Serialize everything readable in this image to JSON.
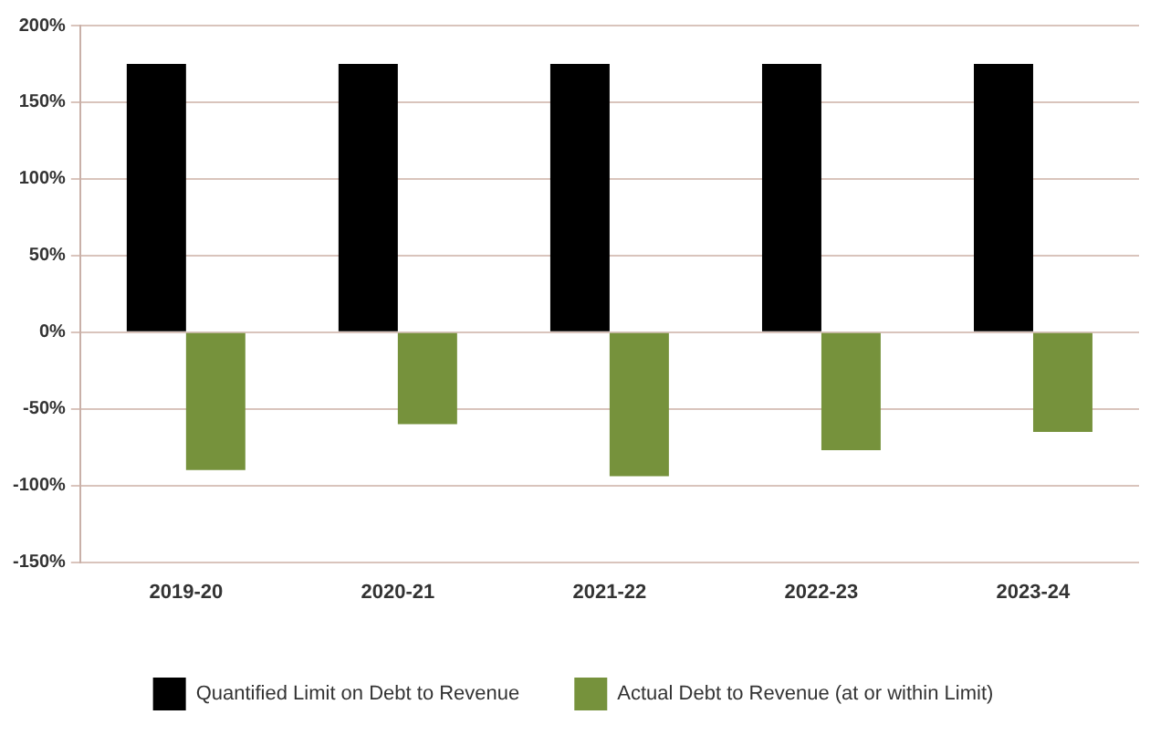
{
  "chart_data": {
    "type": "bar",
    "categories": [
      "2019-20",
      "2020-21",
      "2021-22",
      "2022-23",
      "2023-24"
    ],
    "series": [
      {
        "name": "Quantified Limit on Debt to Revenue",
        "color": "#000000",
        "values": [
          175,
          175,
          175,
          175,
          175
        ]
      },
      {
        "name": "Actual Debt to Revenue (at or within Limit)",
        "color": "#76923c",
        "values": [
          -90,
          -60,
          -94,
          -77,
          -65
        ]
      }
    ],
    "ylim": [
      -150,
      200
    ],
    "yticks": [
      {
        "value": -150,
        "label": "-150%"
      },
      {
        "value": -100,
        "label": "-100%"
      },
      {
        "value": -50,
        "label": "-50%"
      },
      {
        "value": 0,
        "label": "0%"
      },
      {
        "value": 50,
        "label": "50%"
      },
      {
        "value": 100,
        "label": "100%"
      },
      {
        "value": 150,
        "label": "150%"
      },
      {
        "value": 200,
        "label": "200%"
      }
    ],
    "grid": "y",
    "legend": "bottom"
  }
}
